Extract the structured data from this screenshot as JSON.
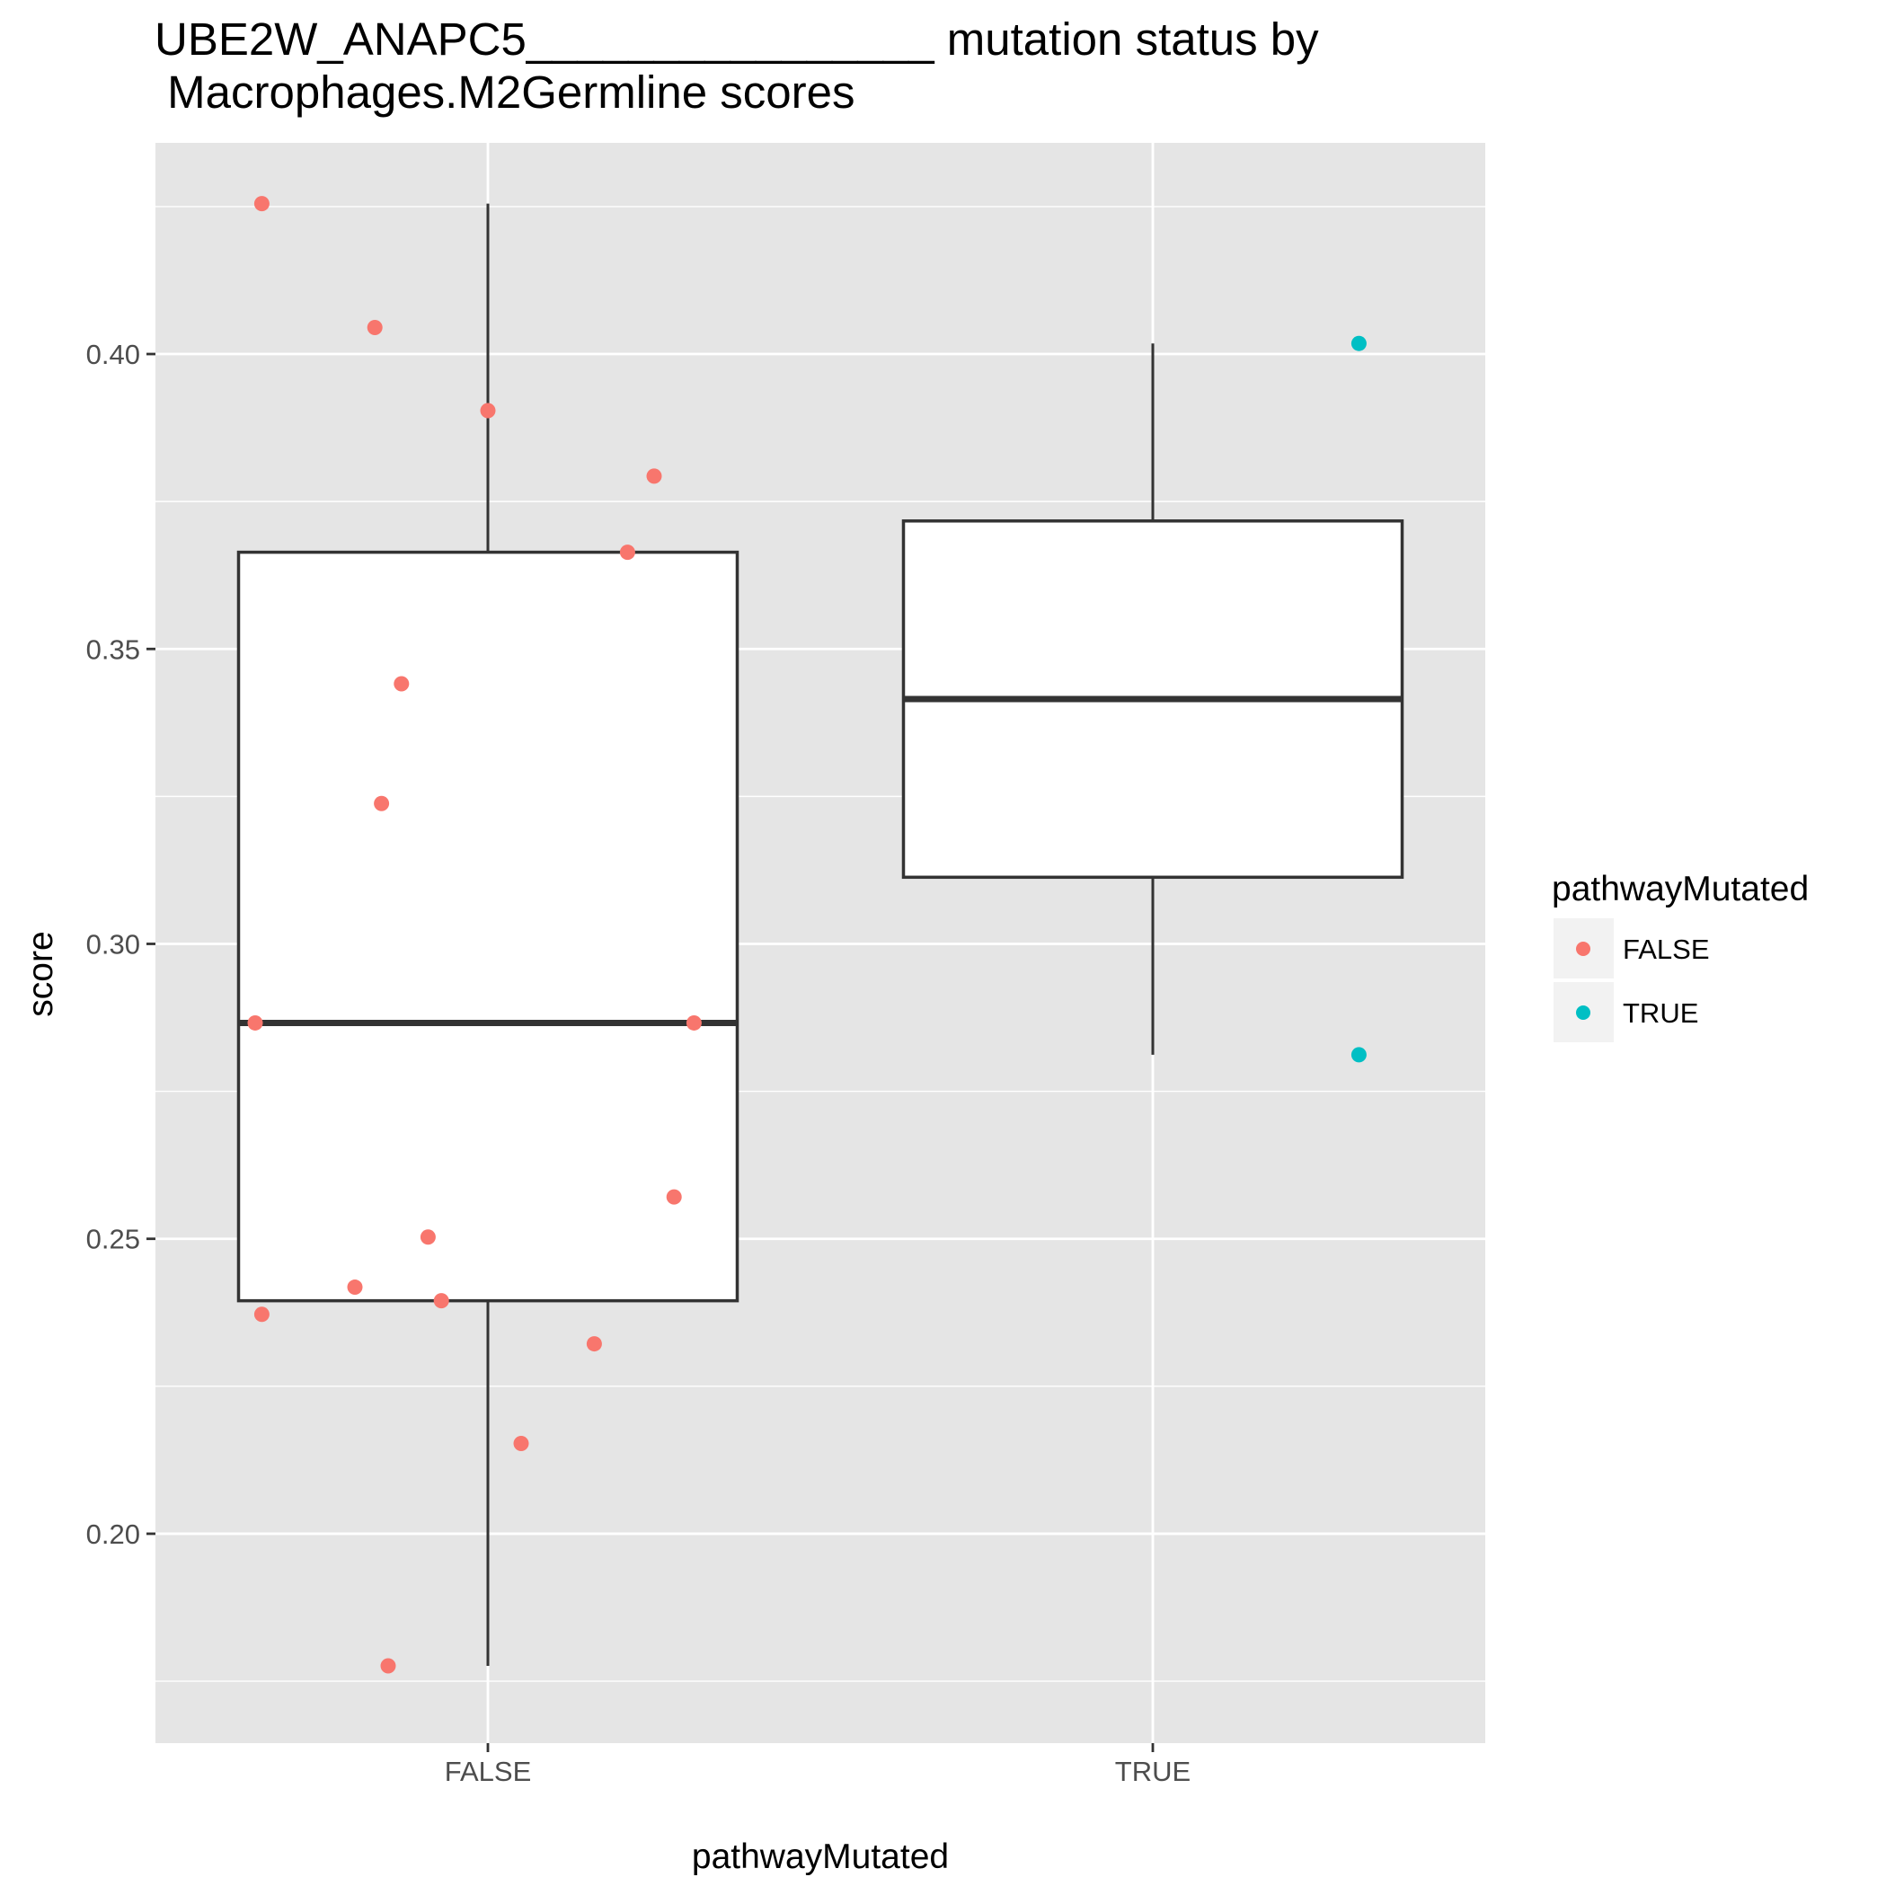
{
  "chart_data": {
    "type": "box",
    "title_line1": "UBE2W_ANAPC5________________ mutation status by",
    "title_line2": " Macrophages.M2Germline scores",
    "xlabel": "pathwayMutated",
    "ylabel": "score",
    "ylim": [
      0.1645,
      0.4358
    ],
    "yticks": [
      0.2,
      0.25,
      0.3,
      0.35,
      0.4
    ],
    "ytick_labels": [
      "0.20",
      "0.25",
      "0.30",
      "0.35",
      "0.40"
    ],
    "categories": [
      "FALSE",
      "TRUE"
    ],
    "grid": true,
    "legend": {
      "title": "pathwayMutated",
      "position": "right",
      "entries": [
        {
          "label": "FALSE",
          "color": "#F8766D"
        },
        {
          "label": "TRUE",
          "color": "#00BFC4"
        }
      ]
    },
    "boxes": [
      {
        "category": "FALSE",
        "min": 0.1776,
        "q1": 0.2395,
        "median": 0.2866,
        "q3": 0.3664,
        "max": 0.4255
      },
      {
        "category": "TRUE",
        "min": 0.2812,
        "q1": 0.3113,
        "median": 0.3415,
        "q3": 0.3717,
        "max": 0.4018
      }
    ],
    "points": [
      {
        "category": "FALSE",
        "jitter": -0.34,
        "y": 0.4255
      },
      {
        "category": "FALSE",
        "jitter": -0.17,
        "y": 0.4045
      },
      {
        "category": "FALSE",
        "jitter": 0.0,
        "y": 0.3904
      },
      {
        "category": "FALSE",
        "jitter": 0.25,
        "y": 0.3793
      },
      {
        "category": "FALSE",
        "jitter": 0.21,
        "y": 0.3664
      },
      {
        "category": "FALSE",
        "jitter": -0.13,
        "y": 0.3441
      },
      {
        "category": "FALSE",
        "jitter": -0.16,
        "y": 0.3238
      },
      {
        "category": "FALSE",
        "jitter": -0.35,
        "y": 0.2866
      },
      {
        "category": "FALSE",
        "jitter": 0.31,
        "y": 0.2866
      },
      {
        "category": "FALSE",
        "jitter": 0.28,
        "y": 0.2571
      },
      {
        "category": "FALSE",
        "jitter": -0.09,
        "y": 0.2503
      },
      {
        "category": "FALSE",
        "jitter": -0.2,
        "y": 0.2418
      },
      {
        "category": "FALSE",
        "jitter": -0.07,
        "y": 0.2395
      },
      {
        "category": "FALSE",
        "jitter": -0.34,
        "y": 0.2372
      },
      {
        "category": "FALSE",
        "jitter": 0.16,
        "y": 0.2322
      },
      {
        "category": "FALSE",
        "jitter": 0.05,
        "y": 0.2153
      },
      {
        "category": "FALSE",
        "jitter": -0.15,
        "y": 0.1776
      },
      {
        "category": "TRUE",
        "jitter": 0.31,
        "y": 0.4018
      },
      {
        "category": "TRUE",
        "jitter": 0.31,
        "y": 0.2812
      }
    ],
    "colors": {
      "panel_bg": "#E5E5E5",
      "grid": "#FFFFFF",
      "box_fill": "#FFFFFF",
      "box_line": "#333333",
      "false_point": "#F8766D",
      "true_point": "#00BFC4",
      "legend_key_bg": "#F2F2F2"
    }
  }
}
